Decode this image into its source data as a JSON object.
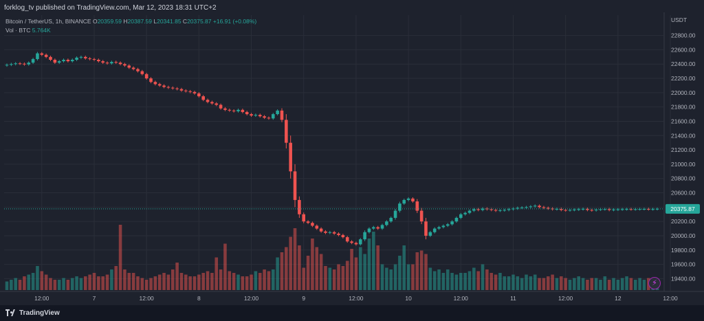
{
  "header": {
    "publisher_line": "forklog_tv published on TradingView.com, Mar 12, 2023 18:31 UTC+2"
  },
  "legend": {
    "symbol": "Bitcoin / TetherUS, 1h, BINANCE",
    "open_label": "O",
    "open": "20359.59",
    "high_label": "H",
    "high": "20387.59",
    "low_label": "L",
    "low": "20341.85",
    "close_label": "C",
    "close": "20375.87",
    "change": "+16.91 (+0.08%)",
    "vol_label": "Vol · BTC",
    "vol_value": "5.764K"
  },
  "footer": {
    "brand": "TradingView"
  },
  "colors": {
    "up": "#26a69a",
    "down": "#ef5350",
    "bg": "#1e222d",
    "grid": "#2a2e39",
    "text": "#b2b5be"
  },
  "chart_data": {
    "type": "candlestick",
    "currency_label": "USDT",
    "last_price_label": "20375.87",
    "last_price": 20375.87,
    "ylim": [
      19250,
      22950
    ],
    "y_ticks": [
      19400,
      19600,
      19800,
      20000,
      20200,
      20400,
      20600,
      20800,
      21000,
      21200,
      21400,
      21600,
      21800,
      22000,
      22200,
      22400,
      22600,
      22800
    ],
    "y_tick_labels": [
      "19400.00",
      "19600.00",
      "19800.00",
      "20000.00",
      "20200.00",
      "20400.00",
      "20600.00",
      "20800.00",
      "21000.00",
      "21200.00",
      "21400.00",
      "21600.00",
      "21800.00",
      "22000.00",
      "22200.00",
      "22400.00",
      "22600.00",
      "22800.00"
    ],
    "x_tick_labels": [
      {
        "label": "12:00",
        "bar": 8
      },
      {
        "label": "7",
        "bar": 20
      },
      {
        "label": "12:00",
        "bar": 32
      },
      {
        "label": "8",
        "bar": 44
      },
      {
        "label": "12:00",
        "bar": 56
      },
      {
        "label": "9",
        "bar": 68
      },
      {
        "label": "12:00",
        "bar": 80
      },
      {
        "label": "10",
        "bar": 92
      },
      {
        "label": "12:00",
        "bar": 104
      },
      {
        "label": "11",
        "bar": 116
      },
      {
        "label": "12:00",
        "bar": 128
      },
      {
        "label": "12",
        "bar": 140
      },
      {
        "label": "12:00",
        "bar": 152
      }
    ],
    "close": [
      22390,
      22400,
      22410,
      22405,
      22395,
      22420,
      22470,
      22550,
      22530,
      22500,
      22460,
      22420,
      22440,
      22460,
      22440,
      22460,
      22490,
      22500,
      22480,
      22470,
      22460,
      22440,
      22420,
      22410,
      22430,
      22420,
      22400,
      22380,
      22350,
      22330,
      22300,
      22260,
      22200,
      22150,
      22120,
      22100,
      22080,
      22070,
      22060,
      22050,
      22030,
      22020,
      22010,
      21990,
      21950,
      21900,
      21870,
      21850,
      21830,
      21780,
      21760,
      21750,
      21740,
      21760,
      21730,
      21700,
      21680,
      21690,
      21670,
      21650,
      21640,
      21700,
      21750,
      21620,
      21300,
      20900,
      20500,
      20300,
      20200,
      20180,
      20140,
      20100,
      20060,
      20040,
      20050,
      20030,
      20010,
      19980,
      19920,
      19900,
      19880,
      19950,
      20050,
      20100,
      20120,
      20100,
      20150,
      20200,
      20250,
      20350,
      20450,
      20500,
      20520,
      20480,
      20350,
      20200,
      20000,
      20050,
      20100,
      20120,
      20140,
      20160,
      20200,
      20250,
      20300,
      20320,
      20350,
      20370,
      20360,
      20380,
      20370,
      20360,
      20350,
      20355,
      20360,
      20370,
      20380,
      20390,
      20395,
      20400,
      20410,
      20420,
      20400,
      20390,
      20380,
      20370,
      20375,
      20360,
      20355,
      20360,
      20365,
      20370,
      20375,
      20360,
      20355,
      20365,
      20370,
      20372,
      20360,
      20365,
      20368,
      20370,
      20372,
      20369,
      20371,
      20373,
      20374,
      20370,
      20372,
      20375.87
    ],
    "volume": [
      0.5,
      0.6,
      0.7,
      0.6,
      0.8,
      0.9,
      1.0,
      1.4,
      1.1,
      0.9,
      0.7,
      0.6,
      0.6,
      0.7,
      0.6,
      0.7,
      0.8,
      0.7,
      0.8,
      0.9,
      1.0,
      0.8,
      0.8,
      0.9,
      1.2,
      1.4,
      3.8,
      1.2,
      1.0,
      1.0,
      0.8,
      0.7,
      0.6,
      0.7,
      0.8,
      0.9,
      1.0,
      0.9,
      1.2,
      1.6,
      1.0,
      0.9,
      0.8,
      0.8,
      0.9,
      1.0,
      1.1,
      1.0,
      1.9,
      1.2,
      2.7,
      1.1,
      1.0,
      0.9,
      0.8,
      0.8,
      0.9,
      1.1,
      1.0,
      1.2,
      1.1,
      1.2,
      1.9,
      2.2,
      2.5,
      3.1,
      3.6,
      2.6,
      1.3,
      2.0,
      3.0,
      2.5,
      2.1,
      1.4,
      1.3,
      1.2,
      1.5,
      1.4,
      1.7,
      2.4,
      1.9,
      2.5,
      2.1,
      3.0,
      3.4,
      2.6,
      1.5,
      1.3,
      1.2,
      1.5,
      2.0,
      2.6,
      1.5,
      1.5,
      2.2,
      2.3,
      2.1,
      1.3,
      1.1,
      1.2,
      1.0,
      1.2,
      1.0,
      0.9,
      1.0,
      1.0,
      1.1,
      1.3,
      1.1,
      1.5,
      1.2,
      1.0,
      0.9,
      1.0,
      0.8,
      0.8,
      0.9,
      0.8,
      0.7,
      0.9,
      0.8,
      0.9,
      0.7,
      0.7,
      0.8,
      0.9,
      0.7,
      0.8,
      0.7,
      0.6,
      0.7,
      0.8,
      0.7,
      0.6,
      0.7,
      0.7,
      0.6,
      0.8,
      0.6,
      0.7,
      0.6,
      0.7,
      0.8,
      0.7,
      0.6,
      0.7,
      0.6,
      0.7,
      0.5,
      0.6
    ]
  }
}
